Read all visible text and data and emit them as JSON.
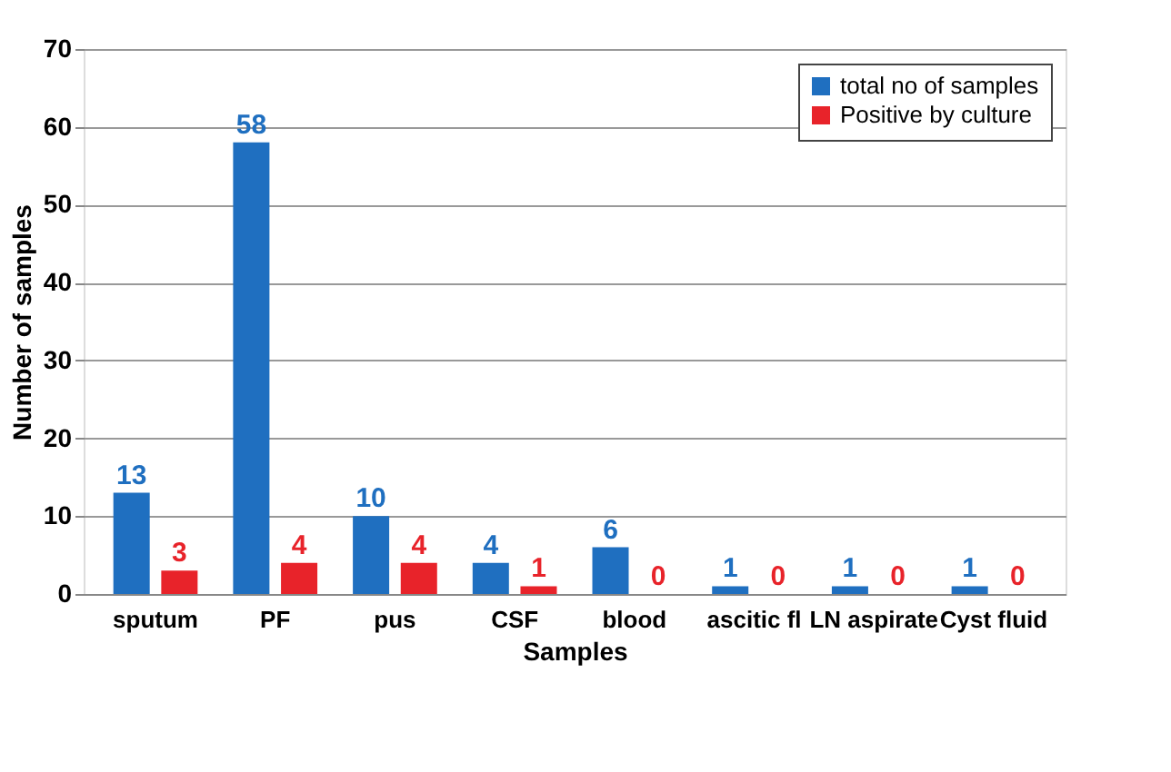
{
  "chart_data": {
    "type": "bar",
    "xlabel": "Samples",
    "ylabel": "Number of samples",
    "categories": [
      "sputum",
      "PF",
      "pus",
      "CSF",
      "blood",
      "ascitic fl",
      "LN aspirate",
      "Cyst fluid"
    ],
    "series": [
      {
        "name": "total no of samples",
        "color": "#1f6fc0",
        "values": [
          13,
          58,
          10,
          4,
          6,
          1,
          1,
          1
        ]
      },
      {
        "name": "Positive by culture",
        "color": "#e8232a",
        "values": [
          3,
          4,
          4,
          1,
          0,
          0,
          0,
          0
        ]
      }
    ],
    "ylim": [
      0,
      70
    ],
    "yticks": [
      0,
      10,
      20,
      30,
      40,
      50,
      60,
      70
    ],
    "grid": "y",
    "legend": "top right",
    "data_labels": true
  }
}
